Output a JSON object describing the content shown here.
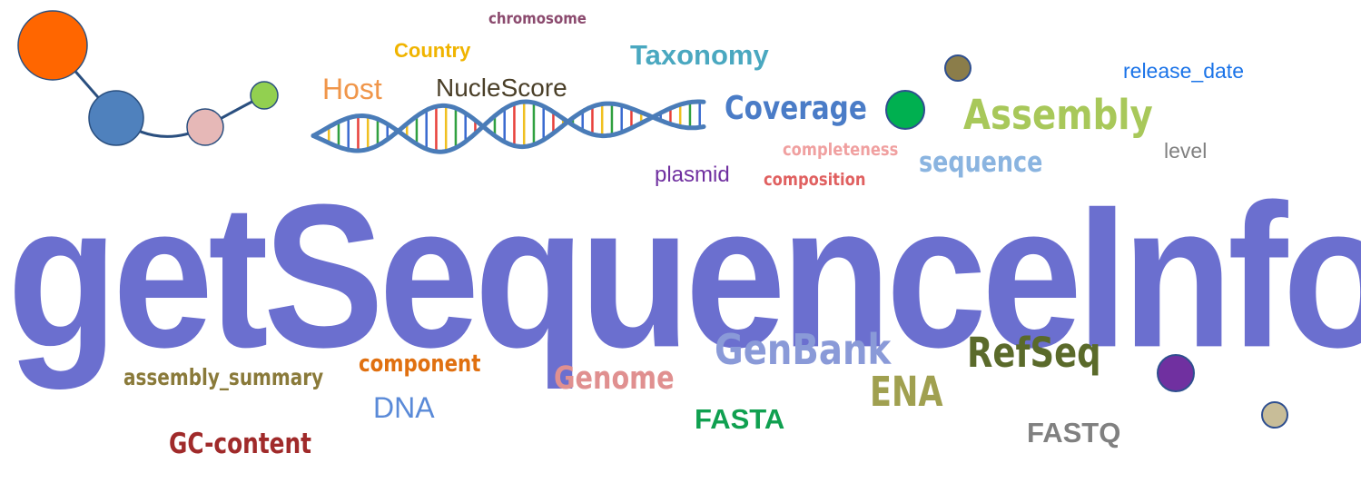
{
  "title": {
    "text": "getSequenceInfo",
    "color": "#6b6fcf"
  },
  "words": [
    {
      "id": "chromosome",
      "text": "chromosome",
      "color": "#8b4a6e"
    },
    {
      "id": "country",
      "text": "Country",
      "color": "#f0b400"
    },
    {
      "id": "taxonomy",
      "text": "Taxonomy",
      "color": "#4aa8c0"
    },
    {
      "id": "host",
      "text": "Host",
      "color": "#f0964a"
    },
    {
      "id": "nuclescore",
      "text": "NucleScore",
      "color": "#4a3f28"
    },
    {
      "id": "release-date",
      "text": "release_date",
      "color": "#1a73e8"
    },
    {
      "id": "coverage",
      "text": "Coverage",
      "color": "#4a7cc7"
    },
    {
      "id": "assembly",
      "text": "Assembly",
      "color": "#a8c85a"
    },
    {
      "id": "completeness",
      "text": "completeness",
      "color": "#f0a0a0"
    },
    {
      "id": "sequence",
      "text": "sequence",
      "color": "#8ab4e0"
    },
    {
      "id": "level",
      "text": "level",
      "color": "#808080"
    },
    {
      "id": "plasmid",
      "text": "plasmid",
      "color": "#7030a0"
    },
    {
      "id": "composition",
      "text": "composition",
      "color": "#e06060"
    },
    {
      "id": "genbank",
      "text": "GenBank",
      "color": "#8a9ad8"
    },
    {
      "id": "refseq",
      "text": "RefSeq",
      "color": "#5a6a2a"
    },
    {
      "id": "ena",
      "text": "ENA",
      "color": "#a0a050"
    },
    {
      "id": "assembly-summary",
      "text": "assembly_summary",
      "color": "#8a7a3a"
    },
    {
      "id": "component",
      "text": "component",
      "color": "#e07010"
    },
    {
      "id": "genome",
      "text": "Genome",
      "color": "#e09090"
    },
    {
      "id": "dna",
      "text": "DNA",
      "color": "#5a8ad8"
    },
    {
      "id": "fasta",
      "text": "FASTA",
      "color": "#10a050"
    },
    {
      "id": "fastq",
      "text": "FASTQ",
      "color": "#808080"
    },
    {
      "id": "gc-content",
      "text": "GC-content",
      "color": "#a02a2a"
    }
  ],
  "molecule": {
    "icon": "molecule-icon",
    "bond_color": "#2a4f7f",
    "atoms": [
      {
        "color": "#ff6600"
      },
      {
        "color": "#4f81bd"
      },
      {
        "color": "#e6b8b7"
      },
      {
        "color": "#92d050"
      }
    ]
  },
  "helix": {
    "icon": "dna-helix-icon",
    "strand_color": "#4a7cb8",
    "rung_colors": [
      "#e8403a",
      "#f0c020",
      "#30a040",
      "#3a6ad0"
    ]
  },
  "dots": [
    {
      "id": "olive",
      "color": "#8b7d4a"
    },
    {
      "id": "green",
      "color": "#00b050"
    },
    {
      "id": "purple",
      "color": "#7030a0"
    },
    {
      "id": "tan",
      "color": "#c8bd98"
    }
  ],
  "dot_outline": "#2f4f8f"
}
